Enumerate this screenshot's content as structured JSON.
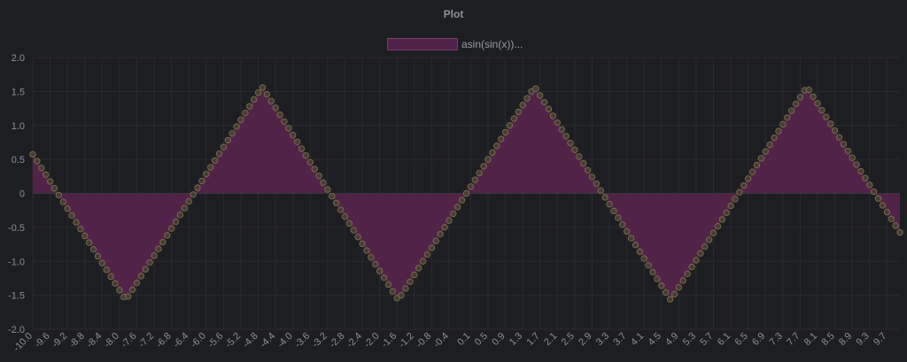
{
  "chart_data": {
    "type": "line",
    "title": "Plot",
    "series": [
      {
        "name": "asin(sin(x))",
        "function": "asin(sin(x))",
        "x_start": -10.0,
        "x_end": 10.0,
        "x_step": 0.1,
        "fill": true
      }
    ],
    "legend_label": "asin(sin(x))...",
    "xlim": [
      -10.0,
      10.0
    ],
    "ylim": [
      -2.0,
      2.0
    ],
    "y_ticks": [
      "2.0",
      "1.5",
      "1.0",
      "0.5",
      "0",
      "-0.5",
      "-1.0",
      "-1.5",
      "-2.0"
    ],
    "x_ticks": [
      "-10.0",
      "-9.6",
      "-9.2",
      "-8.8",
      "-8.4",
      "-8.0",
      "-7.6",
      "-7.2",
      "-6.8",
      "-6.4",
      "-6.0",
      "-5.6",
      "-5.2",
      "-4.8",
      "-4.4",
      "-4.0",
      "-3.6",
      "-3.2",
      "-2.8",
      "-2.4",
      "-2.0",
      "-1.6",
      "-1.2",
      "-0.8",
      "-0.4",
      "0.1",
      "0.5",
      "0.9",
      "1.3",
      "1.7",
      "2.1",
      "2.5",
      "2.9",
      "3.3",
      "3.7",
      "4.1",
      "4.5",
      "4.9",
      "5.3",
      "5.7",
      "6.1",
      "6.5",
      "6.9",
      "7.3",
      "7.7",
      "8.1",
      "8.5",
      "8.9",
      "9.3",
      "9.7"
    ],
    "grid": true,
    "legend_position": "top-center",
    "colors": {
      "fill": "#5a2550",
      "point": "#7a6a48",
      "grid": "#2a2b30"
    }
  }
}
